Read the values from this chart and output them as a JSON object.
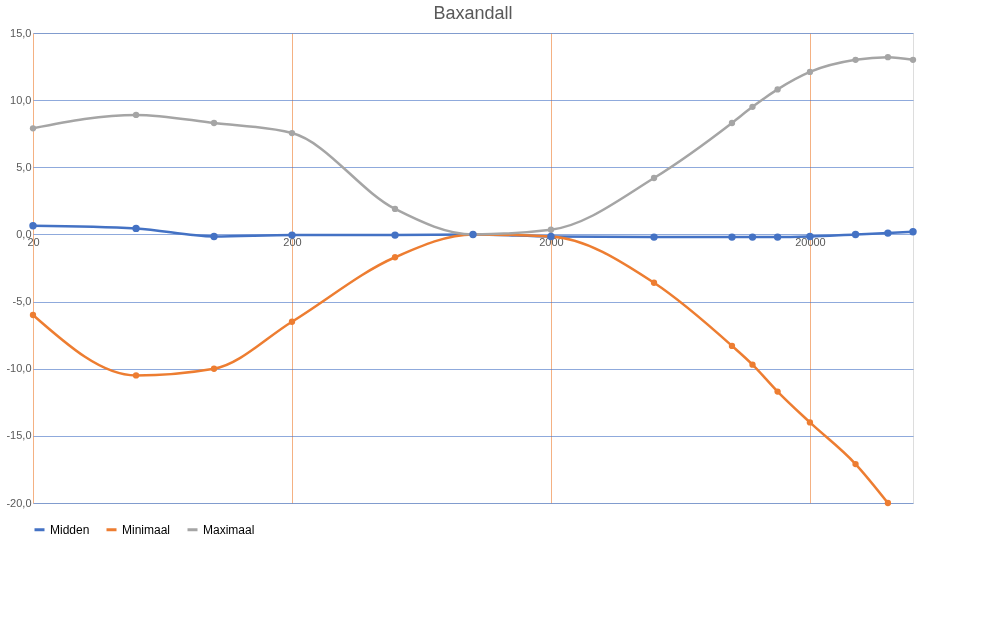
{
  "chart_data": {
    "type": "line",
    "title": "Baxandall",
    "x": [
      20,
      50,
      100,
      200,
      500,
      1000,
      2000,
      5000,
      10000,
      12000,
      15000,
      20000,
      30000,
      40000,
      50000
    ],
    "series": [
      {
        "name": "Midden",
        "color": "#4472c4",
        "values": [
          0.65,
          0.45,
          -0.15,
          -0.05,
          -0.05,
          0,
          -0.15,
          -0.2,
          -0.2,
          -0.2,
          -0.2,
          -0.15,
          0,
          0.1,
          0.2
        ]
      },
      {
        "name": "Minimaal",
        "color": "#ed7d31",
        "values": [
          -6.0,
          -10.5,
          -10.0,
          -6.5,
          -1.7,
          0,
          -0.15,
          -3.6,
          -8.3,
          -9.7,
          -11.7,
          -14.0,
          -17.1,
          -20.0,
          null
        ]
      },
      {
        "name": "Maximaal",
        "color": "#a5a5a5",
        "values": [
          7.9,
          8.9,
          8.3,
          7.55,
          1.9,
          0,
          0.35,
          4.2,
          8.3,
          9.5,
          10.8,
          12.1,
          13.0,
          13.2,
          13.0
        ]
      }
    ],
    "log": "x",
    "xlim": [
      20,
      50000
    ],
    "xticks": [
      20,
      200,
      2000,
      20000
    ],
    "ylim": [
      -20,
      15
    ],
    "yticks": [
      {
        "value": -20,
        "label": "-20,0"
      },
      {
        "value": -15,
        "label": "-15,0"
      },
      {
        "value": -10,
        "label": "-10,0"
      },
      {
        "value": -5,
        "label": "-5,0"
      },
      {
        "value": 0,
        "label": "0,0"
      },
      {
        "value": 5,
        "label": "5,0"
      },
      {
        "value": 10,
        "label": "10,0"
      },
      {
        "value": 15,
        "label": "15,0"
      }
    ],
    "grid": true,
    "legend": "bottom",
    "marker": "circle",
    "line_style": "solid"
  }
}
